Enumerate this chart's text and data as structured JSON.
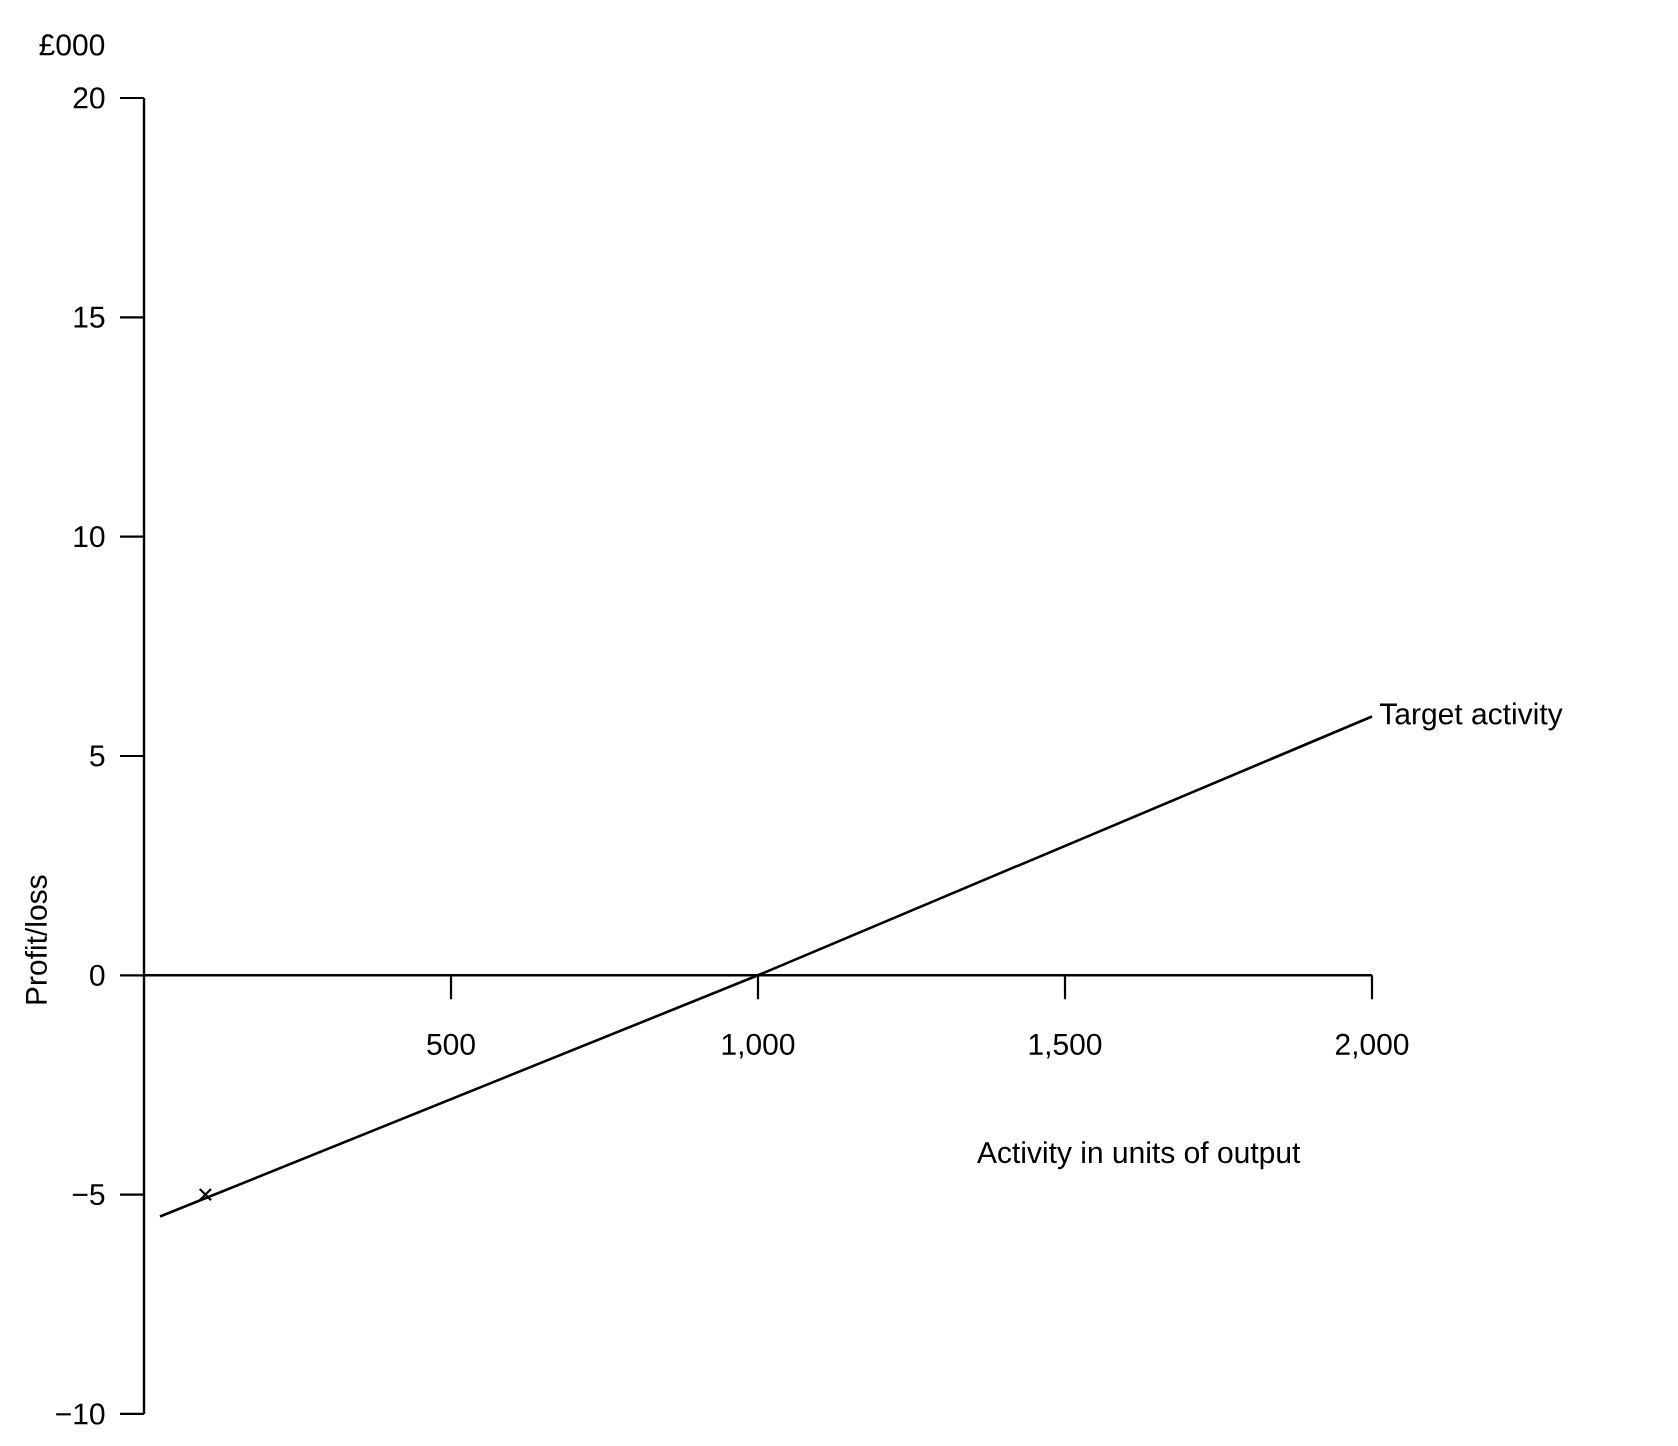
{
  "chart_data": {
    "type": "line",
    "xlabel": "Activity in units of output",
    "ylabel": "Profit/loss",
    "annotations": [
      "£000"
    ],
    "xlim": [
      0,
      2000
    ],
    "ylim": [
      -10,
      20
    ],
    "xticks": [
      500,
      {
        "value": 1000,
        "label": "1,000"
      },
      {
        "value": 1500,
        "label": "1,500"
      },
      {
        "value": 2000,
        "label": "2,000"
      }
    ],
    "yticks": [
      {
        "value": -10,
        "label": "−10"
      },
      {
        "value": -5,
        "label": "−5"
      },
      0,
      5,
      10,
      15,
      20
    ],
    "grid": false,
    "line_style": "solid",
    "series": [
      {
        "name": "Target activity",
        "color": "#000000",
        "marker": "none",
        "x": [
          26,
          1000,
          2000
        ],
        "values": [
          -5.5,
          0,
          5.9
        ]
      },
      {
        "type": "scatter",
        "color": "#000000",
        "marker": "cross",
        "x": [
          100
        ],
        "values": [
          -5
        ]
      }
    ]
  }
}
